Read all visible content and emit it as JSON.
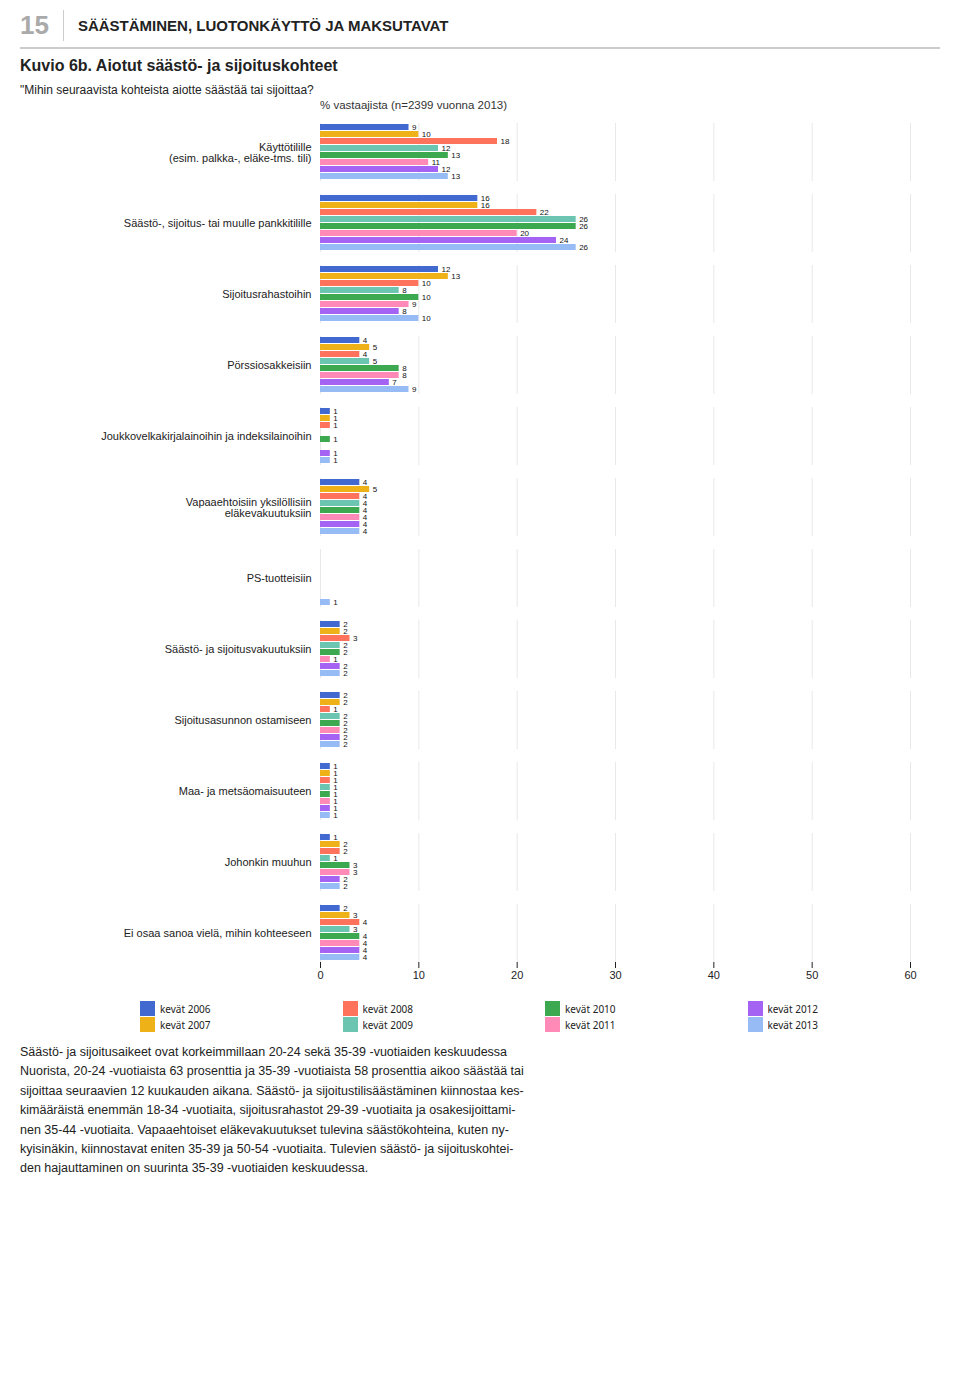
{
  "chart_data": {
    "type": "bar",
    "orientation": "horizontal",
    "title": "Kuvio 6b. Aiotut säästö- ja sijoituskohteet",
    "subtitle": "% vastaajista (n=2399 vuonna 2013)",
    "annotations": [
      "15",
      "SÄÄSTÄMINEN, LUOTONKÄYTTÖ JA MAKSUTAVAT",
      "\"Mihin seuraavista kohteista aiotte säästää tai sijoittaa?",
      "Säästö- ja sijoitusaikeet ovat korkeimmillaan 20-24 sekä 35-39 -vuotiaiden keskuudessa\nNuorista, 20-24 -vuotiaista 63 prosenttia ja 35-39 -vuotiaista 58 prosenttia aikoo säästää tai\nsijoittaa seuraavien 12 kuukauden aikana. Säästö- ja sijoitustilisäästäminen kiinnostaa kes-\nkimääräistä enemmän 18-34 -vuotiaita, sijoitusrahastot 29-39 -vuotiaita ja osakesijoittami-\nnen 35-44 -vuotiaita. Vapaaehtoiset eläkevakuutukset tulevina säästökohteina, kuten ny-\nkyisinäkin, kiinnostavat eniten 35-39 ja 50-54 -vuotiaita. Tulevien säästö- ja sijoituskohtei-\nden hajauttaminen on suurinta 35-39 -vuotiaiden keskuudessa."
    ],
    "categories": [
      "Käyttötilille\n(esim. palkka-, eläke-tms. tili)",
      "Säästö-, sijoitus- tai muulle pankkitilille",
      "Sijoitusrahastoihin",
      "Pörssiosakkeisiin",
      "Joukkovelkakirjalainoihin ja indeksilainoihin",
      "Vapaaehtoisiin yksilöllisiin\neläkevakuutuksiin",
      "PS-tuotteisiin",
      "Säästö- ja sijoitusvakuutuksiin",
      "Sijoitusasunnon ostamiseen",
      "Maa- ja metsäomaisuuteen",
      "Johonkin muuhun",
      "Ei osaa sanoa vielä, mihin kohteeseen"
    ],
    "series": [
      {
        "name": "kevät 2006",
        "values": [
          9,
          16,
          12,
          4,
          1,
          4,
          0,
          2,
          2,
          1,
          1,
          2
        ]
      },
      {
        "name": "kevät  2007",
        "values": [
          10,
          16,
          13,
          5,
          1,
          5,
          0,
          2,
          2,
          1,
          2,
          3
        ]
      },
      {
        "name": "kevät 2008",
        "values": [
          18,
          22,
          10,
          4,
          1,
          4,
          0,
          3,
          1,
          1,
          2,
          4
        ]
      },
      {
        "name": "kevät 2009",
        "values": [
          12,
          26,
          8,
          5,
          0,
          4,
          0,
          2,
          2,
          1,
          1,
          3
        ]
      },
      {
        "name": "kevät 2010",
        "values": [
          13,
          26,
          10,
          8,
          1,
          4,
          0,
          2,
          2,
          1,
          3,
          4
        ]
      },
      {
        "name": "kevät 2011",
        "values": [
          11,
          20,
          9,
          8,
          0,
          4,
          0,
          1,
          2,
          1,
          3,
          4
        ]
      },
      {
        "name": "kevät 2012",
        "values": [
          12,
          24,
          8,
          7,
          1,
          4,
          0,
          2,
          2,
          1,
          2,
          4
        ]
      },
      {
        "name": "kevät 2013",
        "values": [
          13,
          26,
          10,
          9,
          1,
          4,
          1,
          2,
          2,
          1,
          2,
          4
        ]
      }
    ],
    "xlim": [
      0,
      60
    ],
    "xticks": [
      0,
      10,
      20,
      30,
      40,
      50,
      60
    ],
    "grid": true,
    "data_labels": true,
    "legend": "bottom"
  }
}
